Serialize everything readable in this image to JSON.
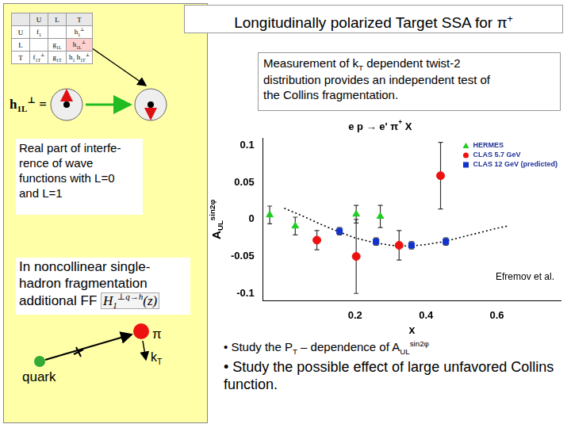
{
  "slide": {
    "title": [
      "Longitudinally  polarized  Target SSA for π",
      {
        "sup": "+"
      }
    ],
    "table": {
      "header": [
        null,
        "U",
        "L",
        "T"
      ],
      "rows": [
        [
          "U",
          [
            "f",
            {
              "sub": "1"
            }
          ],
          null,
          [
            "h",
            {
              "sub": "1"
            },
            {
              "sup": "⊥"
            }
          ]
        ],
        [
          "L",
          null,
          [
            "g",
            {
              "sub": "1L"
            }
          ],
          [
            "h",
            {
              "sub": "1L"
            },
            {
              "sup": "⊥"
            }
          ]
        ],
        [
          "T",
          [
            "f",
            {
              "sub": "1T"
            },
            {
              "sup": "⊥"
            }
          ],
          [
            "g",
            {
              "sub": "1T"
            }
          ],
          [
            "h",
            {
              "sub": "1"
            },
            " h",
            {
              "sub": "1T"
            },
            {
              "sup": "⊥"
            }
          ]
        ]
      ]
    },
    "diagram_label": [
      "h",
      {
        "sub": "1L"
      },
      {
        "sup": "⊥"
      },
      " ="
    ],
    "interference_lines": [
      "Real part of interfe-",
      "rence of wave",
      "functions with L=0",
      "and L=1"
    ],
    "fragmentation_lines": [
      "In noncollinear single-",
      "hadron fragmentation",
      "additional FF "
    ],
    "fragmentation_formula": [
      "H",
      {
        "sub": "1"
      },
      {
        "sup": "⊥q→h"
      },
      "(z)"
    ],
    "quark_label": "quark",
    "pion_label": "π",
    "kt_label": [
      "k",
      {
        "sub": "T"
      }
    ],
    "note_lines": [
      [
        "Measurement of k",
        {
          "sub": "T"
        },
        " dependent twist-2"
      ],
      [
        "distribution provides an independent test of"
      ],
      [
        "the Collins fragmentation."
      ]
    ],
    "bullets": [
      [
        "• Study the P",
        {
          "sub": "T"
        },
        " – dependence of A",
        {
          "sub": "UL"
        },
        {
          "sup": "sin2φ"
        }
      ],
      [
        "• Study the possible effect of large unfavored Collins function."
      ]
    ]
  },
  "chart_data": {
    "type": "scatter",
    "title": [
      "e p → e' π",
      {
        "sup": "+"
      },
      " X"
    ],
    "x_label": "x",
    "y_label": [
      "A",
      {
        "sub": "UL"
      },
      {
        "sup": "sin2φ"
      }
    ],
    "xlim": [
      -0.06,
      0.78
    ],
    "xticks": [
      0.2,
      0.4,
      0.6
    ],
    "ylim": [
      -0.11,
      0.11
    ],
    "yticks": [
      -0.1,
      -0.05,
      0,
      0.05,
      0.1
    ],
    "grid": false,
    "legend": "top-right",
    "annotations": [
      "Efremov et al."
    ],
    "series": [
      {
        "name": "HERMES",
        "color": "#22cc22",
        "marker": "triangle",
        "x": [
          -0.041,
          0.031,
          0.203,
          0.271
        ],
        "values": [
          0.006,
          -0.009,
          0.007,
          0.004
        ],
        "errors": [
          0.012,
          0.012,
          0.012,
          0.015
        ]
      },
      {
        "name": "CLAS 5.7 GeV",
        "color": "#ee1111",
        "marker": "circle",
        "x": [
          0.092,
          0.203,
          0.324,
          0.441
        ],
        "values": [
          -0.028,
          -0.05,
          -0.035,
          0.059
        ],
        "errors": [
          0.013,
          0.05,
          0.02,
          0.045
        ]
      },
      {
        "name": "CLAS 12 GeV (predicted)",
        "color": "#1133cc",
        "marker": "square",
        "x": [
          0.156,
          0.259,
          0.359,
          0.456
        ],
        "values": [
          -0.016,
          -0.03,
          -0.035,
          -0.03
        ],
        "errors": [
          0.005,
          0.005,
          0.005,
          0.005
        ]
      },
      {
        "color": "#000000",
        "marker": "none",
        "line_style": "dotted",
        "x": [
          0,
          0.05,
          0.1,
          0.15,
          0.2,
          0.25,
          0.3,
          0.35,
          0.4,
          0.45,
          0.5,
          0.55,
          0.6,
          0.63
        ],
        "values": [
          0.015,
          0.005,
          -0.006,
          -0.016,
          -0.025,
          -0.031,
          -0.035,
          -0.036,
          -0.034,
          -0.03,
          -0.024,
          -0.018,
          -0.012,
          -0.009
        ]
      }
    ]
  }
}
